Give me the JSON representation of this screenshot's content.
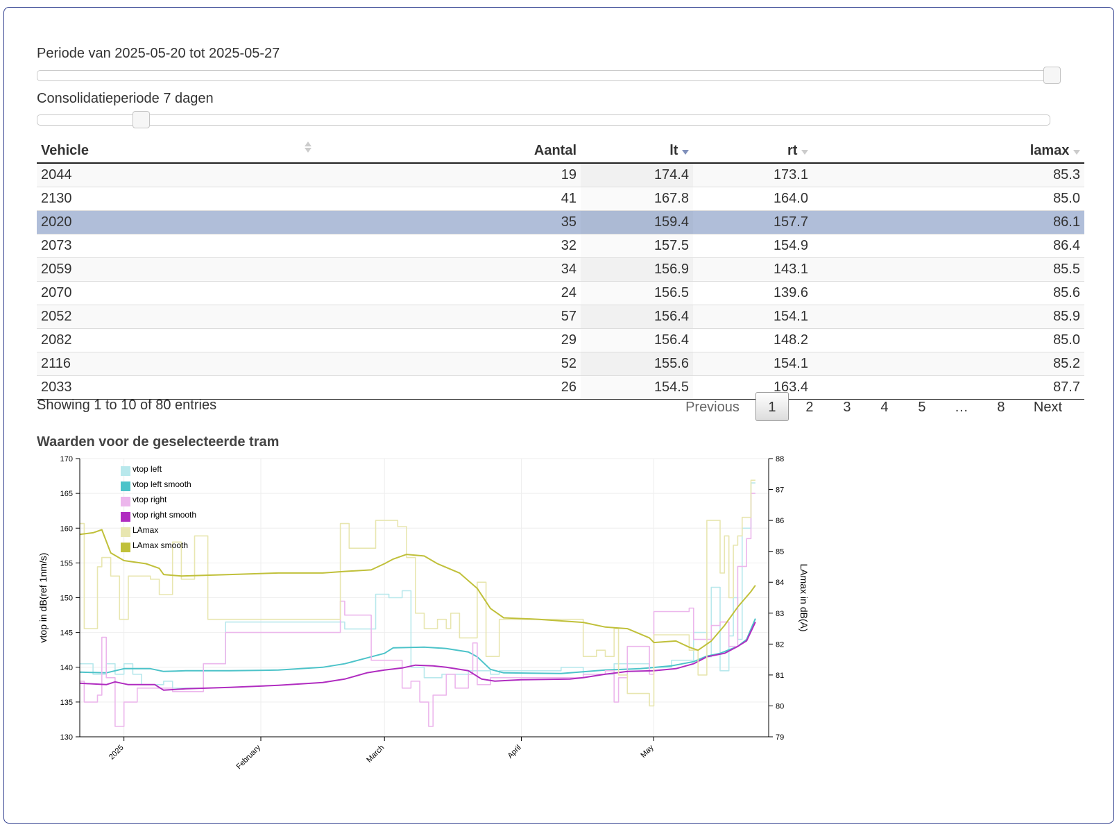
{
  "sliders": {
    "period_label": "Periode van 2025-05-20 tot 2025-05-27",
    "consolidation_label": "Consolidatieperiode 7 dagen"
  },
  "table": {
    "headers": [
      "Vehicle",
      "Aantal",
      "lt",
      "rt",
      "lamax"
    ],
    "sorted_column": "lt",
    "sort_direction": "descending",
    "selected_row": 2,
    "rows": [
      [
        "2044",
        "19",
        "174.4",
        "173.1",
        "85.3"
      ],
      [
        "2130",
        "41",
        "167.8",
        "164.0",
        "85.0"
      ],
      [
        "2020",
        "35",
        "159.4",
        "157.7",
        "86.1"
      ],
      [
        "2073",
        "32",
        "157.5",
        "154.9",
        "86.4"
      ],
      [
        "2059",
        "34",
        "156.9",
        "143.1",
        "85.5"
      ],
      [
        "2070",
        "24",
        "156.5",
        "139.6",
        "85.6"
      ],
      [
        "2052",
        "57",
        "156.4",
        "154.1",
        "85.9"
      ],
      [
        "2082",
        "29",
        "156.4",
        "148.2",
        "85.0"
      ],
      [
        "2116",
        "52",
        "155.6",
        "154.1",
        "85.2"
      ],
      [
        "2033",
        "26",
        "154.5",
        "163.4",
        "87.7"
      ]
    ]
  },
  "info_text": "Showing 1 to 10 of 80 entries",
  "pagination": {
    "previous": "Previous",
    "pages": [
      "1",
      "2",
      "3",
      "4",
      "5",
      "…",
      "8"
    ],
    "current": "1",
    "next": "Next"
  },
  "chart_title": "Waarden voor de geselecteerde tram",
  "colors": {
    "selected_row": "#b0bed9",
    "vtop_left": "#b8e8ec",
    "vtop_left_smooth": "#4cc3c9",
    "vtop_right": "#ecb6ec",
    "vtop_right_smooth": "#b02cc0",
    "lamax": "#e8e6b0",
    "lamax_smooth": "#c0c03a"
  },
  "chart_data": {
    "type": "line",
    "ylabel": "vtop in dB(ref 1nm/s)",
    "y2label": "LAmax in dB(A)",
    "ylim": [
      130,
      170
    ],
    "y2lim": [
      79,
      88
    ],
    "yticks": [
      "130",
      "135",
      "140",
      "145",
      "150",
      "155",
      "160",
      "165",
      "170"
    ],
    "y2ticks": [
      "79",
      "80",
      "81",
      "82",
      "83",
      "84",
      "85",
      "86",
      "87",
      "88"
    ],
    "xlim": [
      "2024-12-22",
      "2025-05-27"
    ],
    "xticks": [
      {
        "date": "2025-01-01",
        "label": "2025"
      },
      {
        "date": "2025-02-01",
        "label": "February"
      },
      {
        "date": "2025-03-01",
        "label": "March"
      },
      {
        "date": "2025-04-01",
        "label": "April"
      },
      {
        "date": "2025-05-01",
        "label": "May"
      }
    ],
    "legend_position": "top-left",
    "series": [
      {
        "name": "vtop left",
        "axis": "left",
        "step": true,
        "points": [
          [
            "2024-12-22",
            140.5
          ],
          [
            "2024-12-25",
            139
          ],
          [
            "2024-12-28",
            140.5
          ],
          [
            "2024-12-30",
            139
          ],
          [
            "2025-01-01",
            140.5
          ],
          [
            "2025-01-03",
            139
          ],
          [
            "2025-01-05",
            137.5
          ],
          [
            "2025-01-10",
            138
          ],
          [
            "2025-01-12",
            137
          ],
          [
            "2025-01-15",
            137
          ],
          [
            "2025-01-19",
            140.5
          ],
          [
            "2025-01-24",
            146.5
          ],
          [
            "2025-02-11",
            146.5
          ],
          [
            "2025-02-19",
            146.5
          ],
          [
            "2025-02-20",
            145.5
          ],
          [
            "2025-02-27",
            150.5
          ],
          [
            "2025-03-02",
            150
          ],
          [
            "2025-03-05",
            151
          ],
          [
            "2025-03-07",
            140
          ],
          [
            "2025-03-10",
            138.5
          ],
          [
            "2025-03-14",
            139
          ],
          [
            "2025-03-20",
            139.5
          ],
          [
            "2025-03-25",
            139
          ],
          [
            "2025-03-27",
            139.5
          ],
          [
            "2025-04-01",
            139.5
          ],
          [
            "2025-04-10",
            140
          ],
          [
            "2025-04-15",
            139
          ],
          [
            "2025-04-22",
            140.5
          ],
          [
            "2025-04-25",
            140.5
          ],
          [
            "2025-04-30",
            140
          ],
          [
            "2025-05-05",
            141
          ],
          [
            "2025-05-10",
            145
          ],
          [
            "2025-05-13",
            141.5
          ],
          [
            "2025-05-14",
            151.5
          ],
          [
            "2025-05-16",
            139.5
          ],
          [
            "2025-05-18",
            144.5
          ],
          [
            "2025-05-19",
            150
          ],
          [
            "2025-05-20",
            144
          ],
          [
            "2025-05-21",
            160
          ],
          [
            "2025-05-23",
            166.5
          ],
          [
            "2025-05-24",
            166.5
          ]
        ]
      },
      {
        "name": "vtop left smooth",
        "axis": "left",
        "step": false,
        "points": [
          [
            "2024-12-22",
            139.3
          ],
          [
            "2024-12-28",
            139.2
          ],
          [
            "2025-01-01",
            139.8
          ],
          [
            "2025-01-07",
            139.8
          ],
          [
            "2025-01-10",
            139.4
          ],
          [
            "2025-01-15",
            139.5
          ],
          [
            "2025-01-25",
            139.5
          ],
          [
            "2025-02-05",
            139.6
          ],
          [
            "2025-02-15",
            140.0
          ],
          [
            "2025-02-20",
            140.5
          ],
          [
            "2025-02-23",
            141.0
          ],
          [
            "2025-03-01",
            142.0
          ],
          [
            "2025-03-03",
            142.8
          ],
          [
            "2025-03-10",
            142.9
          ],
          [
            "2025-03-15",
            142.7
          ],
          [
            "2025-03-20",
            142.2
          ],
          [
            "2025-03-22",
            141.5
          ],
          [
            "2025-03-25",
            139.7
          ],
          [
            "2025-03-28",
            139.2
          ],
          [
            "2025-04-10",
            139.1
          ],
          [
            "2025-04-20",
            139.6
          ],
          [
            "2025-04-28",
            139.8
          ],
          [
            "2025-05-05",
            140.2
          ],
          [
            "2025-05-10",
            140.8
          ],
          [
            "2025-05-13",
            141.6
          ],
          [
            "2025-05-16",
            142.0
          ],
          [
            "2025-05-20",
            143.0
          ],
          [
            "2025-05-22",
            144.0
          ],
          [
            "2025-05-24",
            147.0
          ]
        ]
      },
      {
        "name": "vtop right",
        "axis": "left",
        "step": true,
        "points": [
          [
            "2024-12-22",
            138
          ],
          [
            "2024-12-23",
            135
          ],
          [
            "2024-12-26",
            136
          ],
          [
            "2024-12-27",
            144.3
          ],
          [
            "2024-12-28",
            138.5
          ],
          [
            "2024-12-30",
            131.5
          ],
          [
            "2025-01-01",
            135
          ],
          [
            "2025-01-04",
            137
          ],
          [
            "2025-01-08",
            137
          ],
          [
            "2025-01-12",
            136.5
          ],
          [
            "2025-01-19",
            140.5
          ],
          [
            "2025-01-24",
            145
          ],
          [
            "2025-02-15",
            145
          ],
          [
            "2025-02-19",
            149.5
          ],
          [
            "2025-02-20",
            147.5
          ],
          [
            "2025-02-26",
            141
          ],
          [
            "2025-03-01",
            141
          ],
          [
            "2025-03-05",
            137
          ],
          [
            "2025-03-07",
            138
          ],
          [
            "2025-03-09",
            135
          ],
          [
            "2025-03-11",
            131.5
          ],
          [
            "2025-03-12",
            136
          ],
          [
            "2025-03-15",
            139
          ],
          [
            "2025-03-17",
            137
          ],
          [
            "2025-03-20",
            139
          ],
          [
            "2025-03-21",
            143.5
          ],
          [
            "2025-03-22",
            137.5
          ],
          [
            "2025-03-25",
            138.5
          ],
          [
            "2025-04-15",
            139
          ],
          [
            "2025-04-20",
            139.5
          ],
          [
            "2025-04-22",
            135
          ],
          [
            "2025-04-23",
            138.5
          ],
          [
            "2025-04-25",
            143
          ],
          [
            "2025-04-30",
            139
          ],
          [
            "2025-05-01",
            148
          ],
          [
            "2025-05-05",
            148
          ],
          [
            "2025-05-09",
            148.5
          ],
          [
            "2025-05-10",
            144
          ],
          [
            "2025-05-14",
            146
          ],
          [
            "2025-05-16",
            146.5
          ],
          [
            "2025-05-18",
            143
          ],
          [
            "2025-05-20",
            154.5
          ],
          [
            "2025-05-22",
            158.5
          ],
          [
            "2025-05-23",
            165
          ],
          [
            "2025-05-24",
            165
          ]
        ]
      },
      {
        "name": "vtop right smooth",
        "axis": "left",
        "step": false,
        "points": [
          [
            "2024-12-22",
            137.7
          ],
          [
            "2024-12-28",
            137.5
          ],
          [
            "2024-12-30",
            137.9
          ],
          [
            "2025-01-02",
            137.5
          ],
          [
            "2025-01-08",
            137.5
          ],
          [
            "2025-01-10",
            136.7
          ],
          [
            "2025-01-15",
            136.9
          ],
          [
            "2025-01-25",
            137.1
          ],
          [
            "2025-02-05",
            137.4
          ],
          [
            "2025-02-15",
            137.8
          ],
          [
            "2025-02-20",
            138.3
          ],
          [
            "2025-02-25",
            139.2
          ],
          [
            "2025-03-01",
            139.6
          ],
          [
            "2025-03-05",
            139.9
          ],
          [
            "2025-03-08",
            140.3
          ],
          [
            "2025-03-12",
            140.2
          ],
          [
            "2025-03-15",
            140.0
          ],
          [
            "2025-03-20",
            139.5
          ],
          [
            "2025-03-23",
            138.3
          ],
          [
            "2025-03-26",
            138.0
          ],
          [
            "2025-04-01",
            138.2
          ],
          [
            "2025-04-12",
            138.3
          ],
          [
            "2025-04-15",
            138.5
          ],
          [
            "2025-04-20",
            139.0
          ],
          [
            "2025-04-25",
            139.4
          ],
          [
            "2025-05-01",
            139.5
          ],
          [
            "2025-05-06",
            139.8
          ],
          [
            "2025-05-10",
            140.5
          ],
          [
            "2025-05-13",
            141.5
          ],
          [
            "2025-05-17",
            142.0
          ],
          [
            "2025-05-20",
            143.0
          ],
          [
            "2025-05-22",
            143.8
          ],
          [
            "2025-05-24",
            146.5
          ]
        ]
      },
      {
        "name": "LAmax",
        "axis": "right",
        "step": true,
        "points": [
          [
            "2024-12-22",
            85.9
          ],
          [
            "2024-12-23",
            82.5
          ],
          [
            "2024-12-26",
            84.5
          ],
          [
            "2024-12-27",
            84.8
          ],
          [
            "2024-12-29",
            84.2
          ],
          [
            "2024-12-31",
            82.8
          ],
          [
            "2025-01-02",
            84.2
          ],
          [
            "2025-01-07",
            84.1
          ],
          [
            "2025-01-09",
            83.6
          ],
          [
            "2025-01-12",
            85.3
          ],
          [
            "2025-01-14",
            84.1
          ],
          [
            "2025-01-17",
            85.5
          ],
          [
            "2025-01-20",
            82.8
          ],
          [
            "2025-02-11",
            82.8
          ],
          [
            "2025-02-19",
            85.9
          ],
          [
            "2025-02-21",
            85.1
          ],
          [
            "2025-02-27",
            86.0
          ],
          [
            "2025-03-03",
            86.0
          ],
          [
            "2025-03-04",
            85.8
          ],
          [
            "2025-03-06",
            84.8
          ],
          [
            "2025-03-08",
            83.0
          ],
          [
            "2025-03-10",
            82.5
          ],
          [
            "2025-03-13",
            82.8
          ],
          [
            "2025-03-15",
            82.5
          ],
          [
            "2025-03-16",
            83.0
          ],
          [
            "2025-03-18",
            82.2
          ],
          [
            "2025-03-22",
            84.0
          ],
          [
            "2025-03-24",
            81.6
          ],
          [
            "2025-03-27",
            82.8
          ],
          [
            "2025-04-05",
            82.8
          ],
          [
            "2025-04-09",
            82.8
          ],
          [
            "2025-04-15",
            81.6
          ],
          [
            "2025-04-18",
            81.8
          ],
          [
            "2025-04-20",
            81.6
          ],
          [
            "2025-04-22",
            82.5
          ],
          [
            "2025-04-23",
            81.0
          ],
          [
            "2025-04-25",
            80.4
          ],
          [
            "2025-04-30",
            80.0
          ],
          [
            "2025-05-01",
            82.3
          ],
          [
            "2025-05-05",
            82.3
          ],
          [
            "2025-05-09",
            81.8
          ],
          [
            "2025-05-11",
            81.0
          ],
          [
            "2025-05-13",
            86.0
          ],
          [
            "2025-05-16",
            84.3
          ],
          [
            "2025-05-17",
            85.5
          ],
          [
            "2025-05-18",
            83.5
          ],
          [
            "2025-05-19",
            85.2
          ],
          [
            "2025-05-20",
            85.5
          ],
          [
            "2025-05-21",
            86.1
          ],
          [
            "2025-05-23",
            87.3
          ],
          [
            "2025-05-24",
            87.3
          ]
        ]
      },
      {
        "name": "LAmax smooth",
        "axis": "right",
        "step": false,
        "points": [
          [
            "2024-12-22",
            85.55
          ],
          [
            "2024-12-25",
            85.6
          ],
          [
            "2024-12-27",
            85.7
          ],
          [
            "2024-12-29",
            84.95
          ],
          [
            "2025-01-01",
            84.7
          ],
          [
            "2025-01-06",
            84.6
          ],
          [
            "2025-01-09",
            84.45
          ],
          [
            "2025-01-10",
            84.25
          ],
          [
            "2025-01-14",
            84.2
          ],
          [
            "2025-01-25",
            84.25
          ],
          [
            "2025-02-05",
            84.3
          ],
          [
            "2025-02-15",
            84.3
          ],
          [
            "2025-02-20",
            84.35
          ],
          [
            "2025-02-26",
            84.4
          ],
          [
            "2025-03-01",
            84.6
          ],
          [
            "2025-03-03",
            84.75
          ],
          [
            "2025-03-06",
            84.9
          ],
          [
            "2025-03-10",
            84.85
          ],
          [
            "2025-03-13",
            84.6
          ],
          [
            "2025-03-18",
            84.3
          ],
          [
            "2025-03-22",
            83.8
          ],
          [
            "2025-03-25",
            83.15
          ],
          [
            "2025-03-28",
            82.85
          ],
          [
            "2025-04-05",
            82.8
          ],
          [
            "2025-04-15",
            82.7
          ],
          [
            "2025-04-20",
            82.55
          ],
          [
            "2025-04-25",
            82.5
          ],
          [
            "2025-04-30",
            82.2
          ],
          [
            "2025-05-01",
            82.05
          ],
          [
            "2025-05-06",
            82.1
          ],
          [
            "2025-05-09",
            81.9
          ],
          [
            "2025-05-11",
            81.8
          ],
          [
            "2025-05-14",
            82.1
          ],
          [
            "2025-05-17",
            82.6
          ],
          [
            "2025-05-20",
            83.2
          ],
          [
            "2025-05-23",
            83.7
          ],
          [
            "2025-05-24",
            83.9
          ]
        ]
      }
    ]
  }
}
